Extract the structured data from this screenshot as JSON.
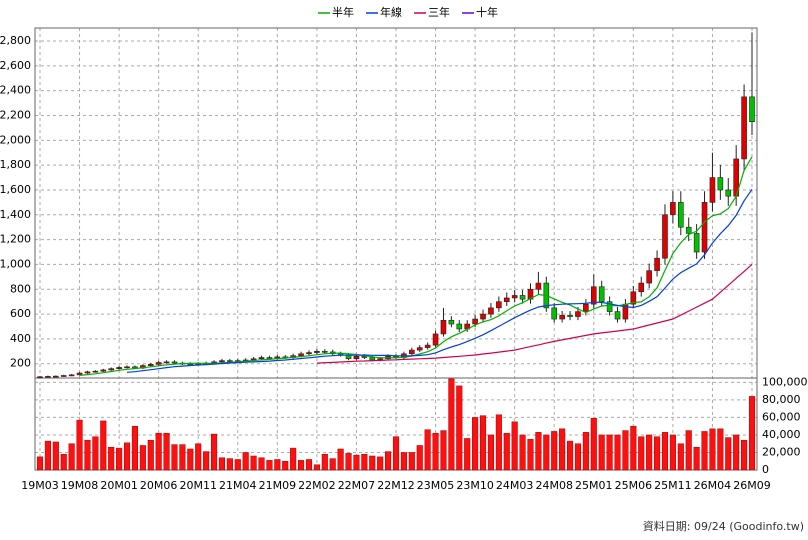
{
  "chart_data": [
    {
      "type": "candlestick",
      "categories": [
        "19M03",
        null,
        null,
        null,
        null,
        "19M08",
        null,
        null,
        null,
        null,
        "20M01",
        null,
        null,
        null,
        null,
        "20M06",
        null,
        null,
        null,
        null,
        "20M11",
        null,
        null,
        null,
        null,
        "21M04",
        null,
        null,
        null,
        null,
        "21M09",
        null,
        null,
        null,
        null,
        "22M02",
        null,
        null,
        null,
        null,
        "22M07",
        null,
        null,
        null,
        null,
        "22M12",
        null,
        null,
        null,
        null,
        "23M05",
        null,
        null,
        null,
        null,
        "23M10",
        null,
        null,
        null,
        null,
        "24M03",
        null,
        null,
        null,
        null,
        "24M08",
        null,
        null,
        null,
        null,
        "25M01",
        null,
        null,
        null,
        null,
        "25M06",
        null,
        null,
        null,
        null,
        "25M11",
        null,
        null,
        null,
        null,
        "26M04",
        null,
        null,
        null,
        null,
        "26M09"
      ],
      "open": [
        90,
        95,
        98,
        100,
        105,
        110,
        125,
        135,
        140,
        150,
        160,
        170,
        175,
        165,
        185,
        195,
        210,
        215,
        205,
        200,
        195,
        200,
        205,
        215,
        225,
        220,
        225,
        230,
        240,
        250,
        245,
        255,
        250,
        265,
        280,
        290,
        300,
        295,
        280,
        270,
        240,
        260,
        250,
        230,
        240,
        260,
        250,
        280,
        310,
        330,
        350,
        440,
        550,
        520,
        480,
        520,
        560,
        600,
        650,
        700,
        730,
        750,
        720,
        800,
        850,
        650,
        560,
        590,
        580,
        620,
        680,
        820,
        700,
        620,
        560,
        680,
        780,
        850,
        950,
        1050,
        1400,
        1500,
        1300,
        1250,
        1100,
        1500,
        1700,
        1600,
        1550,
        1850,
        2350
      ],
      "high": [
        101,
        104,
        106,
        111,
        117,
        133,
        143,
        148,
        159,
        170,
        180,
        186,
        186,
        196,
        207,
        223,
        228,
        228,
        217,
        212,
        212,
        217,
        228,
        239,
        239,
        239,
        244,
        254,
        265,
        265,
        270,
        270,
        281,
        297,
        307,
        318,
        318,
        313,
        297,
        286,
        276,
        276,
        265,
        254,
        276,
        276,
        297,
        329,
        350,
        371,
        466,
        650,
        583,
        551,
        551,
        594,
        636,
        689,
        742,
        774,
        795,
        795,
        848,
        940,
        901,
        689,
        625,
        625,
        657,
        721,
        920,
        869,
        742,
        657,
        721,
        827,
        901,
        1007,
        1113,
        1484,
        1590,
        1590,
        1378,
        1325,
        1590,
        1900,
        1802,
        1696,
        1961,
        2450,
        2870
      ],
      "low": [
        86,
        90,
        93,
        95,
        100,
        105,
        119,
        128,
        133,
        143,
        152,
        162,
        157,
        157,
        176,
        185,
        200,
        195,
        190,
        185,
        185,
        190,
        195,
        204,
        209,
        209,
        214,
        219,
        228,
        233,
        233,
        238,
        238,
        252,
        266,
        276,
        280,
        266,
        257,
        228,
        228,
        238,
        219,
        219,
        228,
        238,
        238,
        266,
        295,
        314,
        333,
        418,
        494,
        456,
        456,
        494,
        532,
        570,
        618,
        665,
        694,
        684,
        684,
        760,
        618,
        532,
        532,
        551,
        551,
        589,
        646,
        665,
        589,
        532,
        532,
        646,
        741,
        808,
        903,
        998,
        1330,
        1235,
        1188,
        1045,
        1045,
        1425,
        1520,
        1472,
        1472,
        1758,
        2043
      ],
      "close": [
        95,
        98,
        100,
        105,
        110,
        125,
        135,
        140,
        150,
        160,
        170,
        175,
        165,
        185,
        195,
        210,
        215,
        205,
        200,
        195,
        200,
        205,
        215,
        225,
        220,
        225,
        230,
        240,
        250,
        245,
        255,
        250,
        265,
        280,
        290,
        300,
        295,
        280,
        270,
        240,
        260,
        250,
        230,
        240,
        260,
        250,
        280,
        310,
        330,
        350,
        440,
        550,
        520,
        480,
        520,
        560,
        600,
        650,
        700,
        730,
        750,
        720,
        800,
        850,
        650,
        560,
        590,
        580,
        620,
        680,
        820,
        700,
        620,
        560,
        680,
        780,
        850,
        950,
        1050,
        1400,
        1500,
        1300,
        1250,
        1100,
        1500,
        1700,
        1600,
        1550,
        1850,
        2350,
        2150
      ],
      "up_color": "#e00000",
      "down_color": "#00c000",
      "series": [
        {
          "name": "半年",
          "color": "#00b000",
          "values": [
            null,
            null,
            null,
            null,
            null,
            106,
            112,
            119,
            128,
            137,
            147,
            155,
            160,
            168,
            175,
            183,
            191,
            196,
            202,
            203,
            204,
            203,
            203,
            207,
            210,
            215,
            220,
            226,
            232,
            235,
            241,
            245,
            251,
            258,
            264,
            273,
            280,
            285,
            286,
            279,
            274,
            266,
            255,
            248,
            247,
            248,
            252,
            262,
            278,
            297,
            327,
            377,
            417,
            445,
            477,
            512,
            538,
            555,
            585,
            627,
            665,
            692,
            725,
            758,
            750,
            722,
            695,
            672,
            642,
            613,
            642,
            665,
            670,
            667,
            677,
            693,
            698,
            740,
            812,
            952,
            1088,
            1175,
            1242,
            1267,
            1342,
            1392,
            1408,
            1450,
            1550,
            1758,
            1867
          ]
        },
        {
          "name": "年線",
          "color": "#0040e0",
          "values": [
            null,
            null,
            null,
            null,
            null,
            null,
            null,
            null,
            null,
            null,
            null,
            131,
            136,
            144,
            152,
            160,
            169,
            176,
            181,
            186,
            190,
            193,
            197,
            202,
            206,
            209,
            212,
            215,
            218,
            221,
            226,
            230,
            236,
            242,
            248,
            254,
            261,
            265,
            269,
            269,
            269,
            270,
            268,
            267,
            267,
            264,
            263,
            264,
            267,
            273,
            287,
            313,
            335,
            354,
            378,
            405,
            433,
            466,
            501,
            536,
            571,
            602,
            632,
            657,
            668,
            675,
            680,
            682,
            684,
            686,
            696,
            694,
            683,
            670,
            660,
            653,
            670,
            703,
            741,
            810,
            883,
            934,
            970,
            1004,
            1077,
            1172,
            1248,
            1313,
            1396,
            1513,
            1605
          ]
        },
        {
          "name": "三年",
          "color": "#d00050",
          "values": [
            null,
            null,
            null,
            null,
            null,
            null,
            null,
            null,
            null,
            null,
            null,
            null,
            null,
            null,
            null,
            null,
            null,
            null,
            null,
            null,
            null,
            null,
            null,
            null,
            null,
            null,
            null,
            null,
            null,
            null,
            null,
            null,
            null,
            null,
            null,
            205,
            208,
            211,
            214,
            217,
            220,
            222,
            225,
            227,
            230,
            232,
            235,
            237,
            240,
            242,
            245,
            250,
            255,
            260,
            265,
            270,
            278,
            286,
            294,
            302,
            310,
            324,
            338,
            352,
            366,
            380,
            392,
            404,
            416,
            428,
            440,
            448,
            456,
            464,
            472,
            480,
            496,
            512,
            528,
            544,
            560,
            592,
            624,
            656,
            688,
            720,
            776,
            832,
            888,
            944,
            1000
          ]
        },
        {
          "name": "十年",
          "color": "#7000d0",
          "values": [
            null,
            null,
            null,
            null,
            null,
            null,
            null,
            null,
            null,
            null,
            null,
            null,
            null,
            null,
            null,
            null,
            null,
            null,
            null,
            null,
            null,
            null,
            null,
            null,
            null,
            null,
            null,
            null,
            null,
            null,
            null,
            null,
            null,
            null,
            null,
            null,
            null,
            null,
            null,
            null,
            null,
            null,
            null,
            null,
            null,
            null,
            null,
            null,
            null,
            null,
            null,
            null,
            null,
            null,
            null,
            null,
            null,
            null,
            null,
            null,
            null,
            null,
            null,
            null,
            null,
            null,
            null,
            null,
            null,
            null,
            null,
            null,
            null,
            null,
            null,
            null,
            null,
            null,
            null,
            null,
            null,
            null,
            null,
            null,
            null,
            null,
            null,
            null,
            null,
            null,
            null
          ]
        }
      ],
      "ylim": [
        85,
        2905
      ],
      "yticks": [
        200,
        400,
        600,
        800,
        {
          "value": 1000,
          "label": "1,000"
        },
        {
          "value": 1200,
          "label": "1,200"
        },
        {
          "value": 1400,
          "label": "1,400"
        },
        {
          "value": 1600,
          "label": "1,600"
        },
        {
          "value": 1800,
          "label": "1,800"
        },
        {
          "value": 2000,
          "label": "2,000"
        },
        {
          "value": 2200,
          "label": "2,200"
        },
        {
          "value": 2400,
          "label": "2,400"
        },
        {
          "value": 2600,
          "label": "2,600"
        },
        {
          "value": 2800,
          "label": "2,800"
        }
      ],
      "grid": true,
      "legend": "top"
    },
    {
      "type": "bar",
      "values": [
        15000,
        33000,
        32000,
        18000,
        30000,
        57000,
        34000,
        38000,
        56000,
        26000,
        25000,
        31000,
        50000,
        28000,
        34000,
        42000,
        42000,
        29000,
        29000,
        24000,
        30000,
        21000,
        41000,
        14000,
        13000,
        12000,
        20000,
        16000,
        14000,
        11000,
        12000,
        10000,
        25000,
        11000,
        12000,
        6000,
        18000,
        13000,
        24000,
        19000,
        17000,
        18000,
        16000,
        15000,
        21000,
        38000,
        20000,
        20000,
        28000,
        46000,
        42000,
        45000,
        104000,
        96000,
        36000,
        60000,
        62000,
        40000,
        63000,
        42000,
        55000,
        40000,
        35000,
        43000,
        40000,
        44000,
        47000,
        33000,
        30000,
        43000,
        59000,
        40000,
        40000,
        40000,
        45000,
        50000,
        38000,
        40000,
        38000,
        43000,
        40000,
        30000,
        45000,
        26000,
        44000,
        47000,
        47000,
        37000,
        40000,
        34000,
        84000
      ],
      "color": "#ff1010",
      "ylim": [
        0,
        105000
      ],
      "yticks": [
        0,
        {
          "value": 20000,
          "label": "20,000"
        },
        {
          "value": 40000,
          "label": "40,000"
        },
        {
          "value": 60000,
          "label": "60,000"
        },
        {
          "value": 80000,
          "label": "80,000"
        },
        {
          "value": 100000,
          "label": "100,000"
        }
      ],
      "grid": true,
      "source": "資料日期: 09/24  (Goodinfo.tw)"
    }
  ]
}
